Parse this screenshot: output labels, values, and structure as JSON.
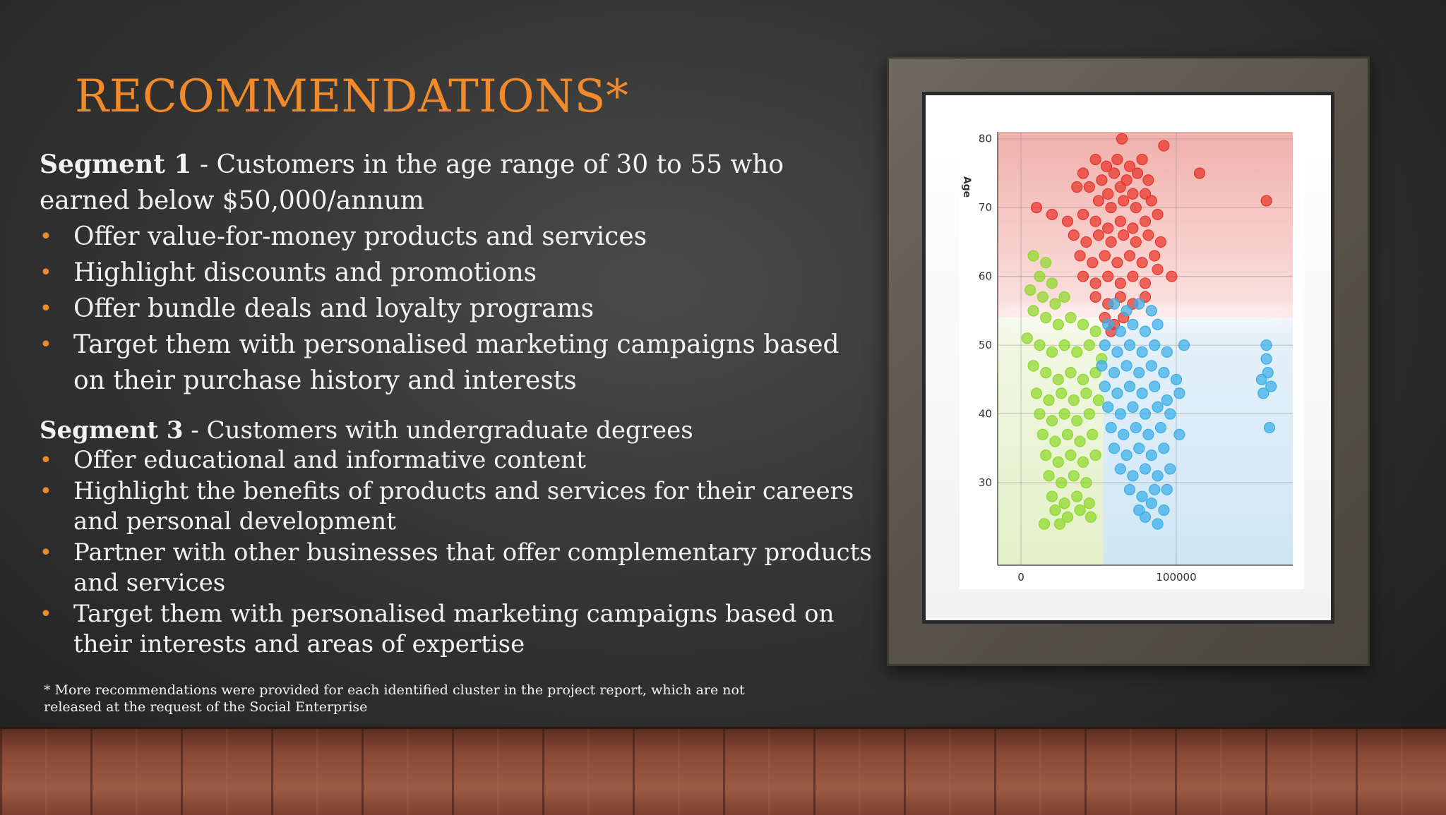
{
  "slide": {
    "title": "RECOMMENDATIONS*",
    "segment1": {
      "label": "Segment 1",
      "description": " - Customers in the age range of 30 to 55 who earned below $50,000/annum",
      "bullets": [
        "Offer value-for-money products and services",
        "Highlight discounts and promotions",
        "Offer bundle deals and loyalty programs",
        "Target them with personalised marketing campaigns based on their purchase history and interests"
      ]
    },
    "segment3": {
      "label": "Segment 3",
      "description": " - Customers with undergraduate degrees",
      "bullets": [
        "Offer educational and informative content",
        "Highlight the benefits of products and services for their careers and personal development",
        "Partner with other businesses that offer complementary products and services",
        "Target them with personalised marketing campaigns based on their interests and areas of expertise"
      ]
    },
    "bullet_glyph": "•",
    "footnote": "* More recommendations were provided for each identified cluster in the project report, which are not released at the request of the Social Enterprise",
    "colors": {
      "title": "#f08a2a",
      "bullet": "#f08a2a",
      "text": "#f2f2f2"
    }
  },
  "chart_data": {
    "type": "scatter",
    "title": "",
    "xlabel": "",
    "ylabel": "Age",
    "xlim": [
      -15000,
      175000
    ],
    "ylim": [
      18,
      81
    ],
    "x_ticks": [
      0,
      100000
    ],
    "y_ticks": [
      30,
      40,
      50,
      60,
      70,
      80
    ],
    "grid": true,
    "legend": "none",
    "series": [
      {
        "color": "#e8352a",
        "points": [
          [
            65000,
            80
          ],
          [
            92000,
            79
          ],
          [
            48000,
            77
          ],
          [
            55000,
            76
          ],
          [
            62000,
            77
          ],
          [
            70000,
            76
          ],
          [
            78000,
            77
          ],
          [
            40000,
            75
          ],
          [
            52000,
            74
          ],
          [
            60000,
            75
          ],
          [
            68000,
            74
          ],
          [
            75000,
            75
          ],
          [
            82000,
            74
          ],
          [
            115000,
            75
          ],
          [
            44000,
            73
          ],
          [
            56000,
            72
          ],
          [
            64000,
            73
          ],
          [
            72000,
            72
          ],
          [
            80000,
            72
          ],
          [
            36000,
            73
          ],
          [
            50000,
            71
          ],
          [
            58000,
            70
          ],
          [
            66000,
            71
          ],
          [
            74000,
            70
          ],
          [
            84000,
            71
          ],
          [
            158000,
            71
          ],
          [
            10000,
            70
          ],
          [
            20000,
            69
          ],
          [
            30000,
            68
          ],
          [
            40000,
            69
          ],
          [
            48000,
            68
          ],
          [
            56000,
            67
          ],
          [
            64000,
            68
          ],
          [
            72000,
            67
          ],
          [
            80000,
            68
          ],
          [
            88000,
            69
          ],
          [
            34000,
            66
          ],
          [
            42000,
            65
          ],
          [
            50000,
            66
          ],
          [
            58000,
            65
          ],
          [
            66000,
            66
          ],
          [
            74000,
            65
          ],
          [
            82000,
            66
          ],
          [
            90000,
            65
          ],
          [
            38000,
            63
          ],
          [
            46000,
            62
          ],
          [
            54000,
            63
          ],
          [
            62000,
            62
          ],
          [
            70000,
            63
          ],
          [
            78000,
            62
          ],
          [
            86000,
            63
          ],
          [
            40000,
            60
          ],
          [
            48000,
            59
          ],
          [
            56000,
            60
          ],
          [
            64000,
            59
          ],
          [
            72000,
            60
          ],
          [
            80000,
            59
          ],
          [
            88000,
            61
          ],
          [
            97000,
            60
          ],
          [
            48000,
            57
          ],
          [
            56000,
            56
          ],
          [
            64000,
            57
          ],
          [
            72000,
            56
          ],
          [
            80000,
            57
          ],
          [
            54000,
            54
          ],
          [
            60000,
            53
          ],
          [
            66000,
            54
          ],
          [
            58000,
            52
          ]
        ]
      },
      {
        "color": "#8fd82a",
        "points": [
          [
            8000,
            63
          ],
          [
            16000,
            62
          ],
          [
            12000,
            60
          ],
          [
            20000,
            59
          ],
          [
            6000,
            58
          ],
          [
            14000,
            57
          ],
          [
            22000,
            56
          ],
          [
            28000,
            57
          ],
          [
            8000,
            55
          ],
          [
            16000,
            54
          ],
          [
            24000,
            53
          ],
          [
            32000,
            54
          ],
          [
            40000,
            53
          ],
          [
            48000,
            52
          ],
          [
            4000,
            51
          ],
          [
            12000,
            50
          ],
          [
            20000,
            49
          ],
          [
            28000,
            50
          ],
          [
            36000,
            49
          ],
          [
            44000,
            50
          ],
          [
            52000,
            48
          ],
          [
            8000,
            47
          ],
          [
            16000,
            46
          ],
          [
            24000,
            45
          ],
          [
            32000,
            46
          ],
          [
            40000,
            45
          ],
          [
            48000,
            46
          ],
          [
            10000,
            43
          ],
          [
            18000,
            42
          ],
          [
            26000,
            43
          ],
          [
            34000,
            42
          ],
          [
            42000,
            43
          ],
          [
            50000,
            42
          ],
          [
            12000,
            40
          ],
          [
            20000,
            39
          ],
          [
            28000,
            40
          ],
          [
            36000,
            39
          ],
          [
            44000,
            40
          ],
          [
            14000,
            37
          ],
          [
            22000,
            36
          ],
          [
            30000,
            37
          ],
          [
            38000,
            36
          ],
          [
            46000,
            37
          ],
          [
            16000,
            34
          ],
          [
            24000,
            33
          ],
          [
            32000,
            34
          ],
          [
            40000,
            33
          ],
          [
            48000,
            34
          ],
          [
            18000,
            31
          ],
          [
            26000,
            30
          ],
          [
            34000,
            31
          ],
          [
            42000,
            30
          ],
          [
            20000,
            28
          ],
          [
            28000,
            27
          ],
          [
            36000,
            28
          ],
          [
            44000,
            27
          ],
          [
            22000,
            26
          ],
          [
            30000,
            25
          ],
          [
            38000,
            26
          ],
          [
            15000,
            24
          ],
          [
            25000,
            24
          ],
          [
            45000,
            25
          ]
        ]
      },
      {
        "color": "#3aaee8",
        "points": [
          [
            60000,
            56
          ],
          [
            68000,
            55
          ],
          [
            76000,
            56
          ],
          [
            84000,
            55
          ],
          [
            56000,
            53
          ],
          [
            64000,
            52
          ],
          [
            72000,
            53
          ],
          [
            80000,
            52
          ],
          [
            88000,
            53
          ],
          [
            54000,
            50
          ],
          [
            62000,
            49
          ],
          [
            70000,
            50
          ],
          [
            78000,
            49
          ],
          [
            86000,
            50
          ],
          [
            94000,
            49
          ],
          [
            105000,
            50
          ],
          [
            52000,
            47
          ],
          [
            60000,
            46
          ],
          [
            68000,
            47
          ],
          [
            76000,
            46
          ],
          [
            84000,
            47
          ],
          [
            92000,
            46
          ],
          [
            100000,
            45
          ],
          [
            54000,
            44
          ],
          [
            62000,
            43
          ],
          [
            70000,
            44
          ],
          [
            78000,
            43
          ],
          [
            86000,
            44
          ],
          [
            94000,
            42
          ],
          [
            102000,
            43
          ],
          [
            56000,
            41
          ],
          [
            64000,
            40
          ],
          [
            72000,
            41
          ],
          [
            80000,
            40
          ],
          [
            88000,
            41
          ],
          [
            96000,
            40
          ],
          [
            58000,
            38
          ],
          [
            66000,
            37
          ],
          [
            74000,
            38
          ],
          [
            82000,
            37
          ],
          [
            90000,
            38
          ],
          [
            102000,
            37
          ],
          [
            60000,
            35
          ],
          [
            68000,
            34
          ],
          [
            76000,
            35
          ],
          [
            84000,
            34
          ],
          [
            92000,
            35
          ],
          [
            64000,
            32
          ],
          [
            72000,
            31
          ],
          [
            80000,
            32
          ],
          [
            88000,
            31
          ],
          [
            96000,
            32
          ],
          [
            70000,
            29
          ],
          [
            78000,
            28
          ],
          [
            86000,
            29
          ],
          [
            94000,
            29
          ],
          [
            76000,
            26
          ],
          [
            84000,
            27
          ],
          [
            92000,
            26
          ],
          [
            80000,
            25
          ],
          [
            88000,
            24
          ],
          [
            158000,
            50
          ],
          [
            158000,
            48
          ],
          [
            159000,
            46
          ],
          [
            155000,
            45
          ],
          [
            161000,
            44
          ],
          [
            156000,
            43
          ],
          [
            160000,
            38
          ]
        ]
      }
    ]
  }
}
